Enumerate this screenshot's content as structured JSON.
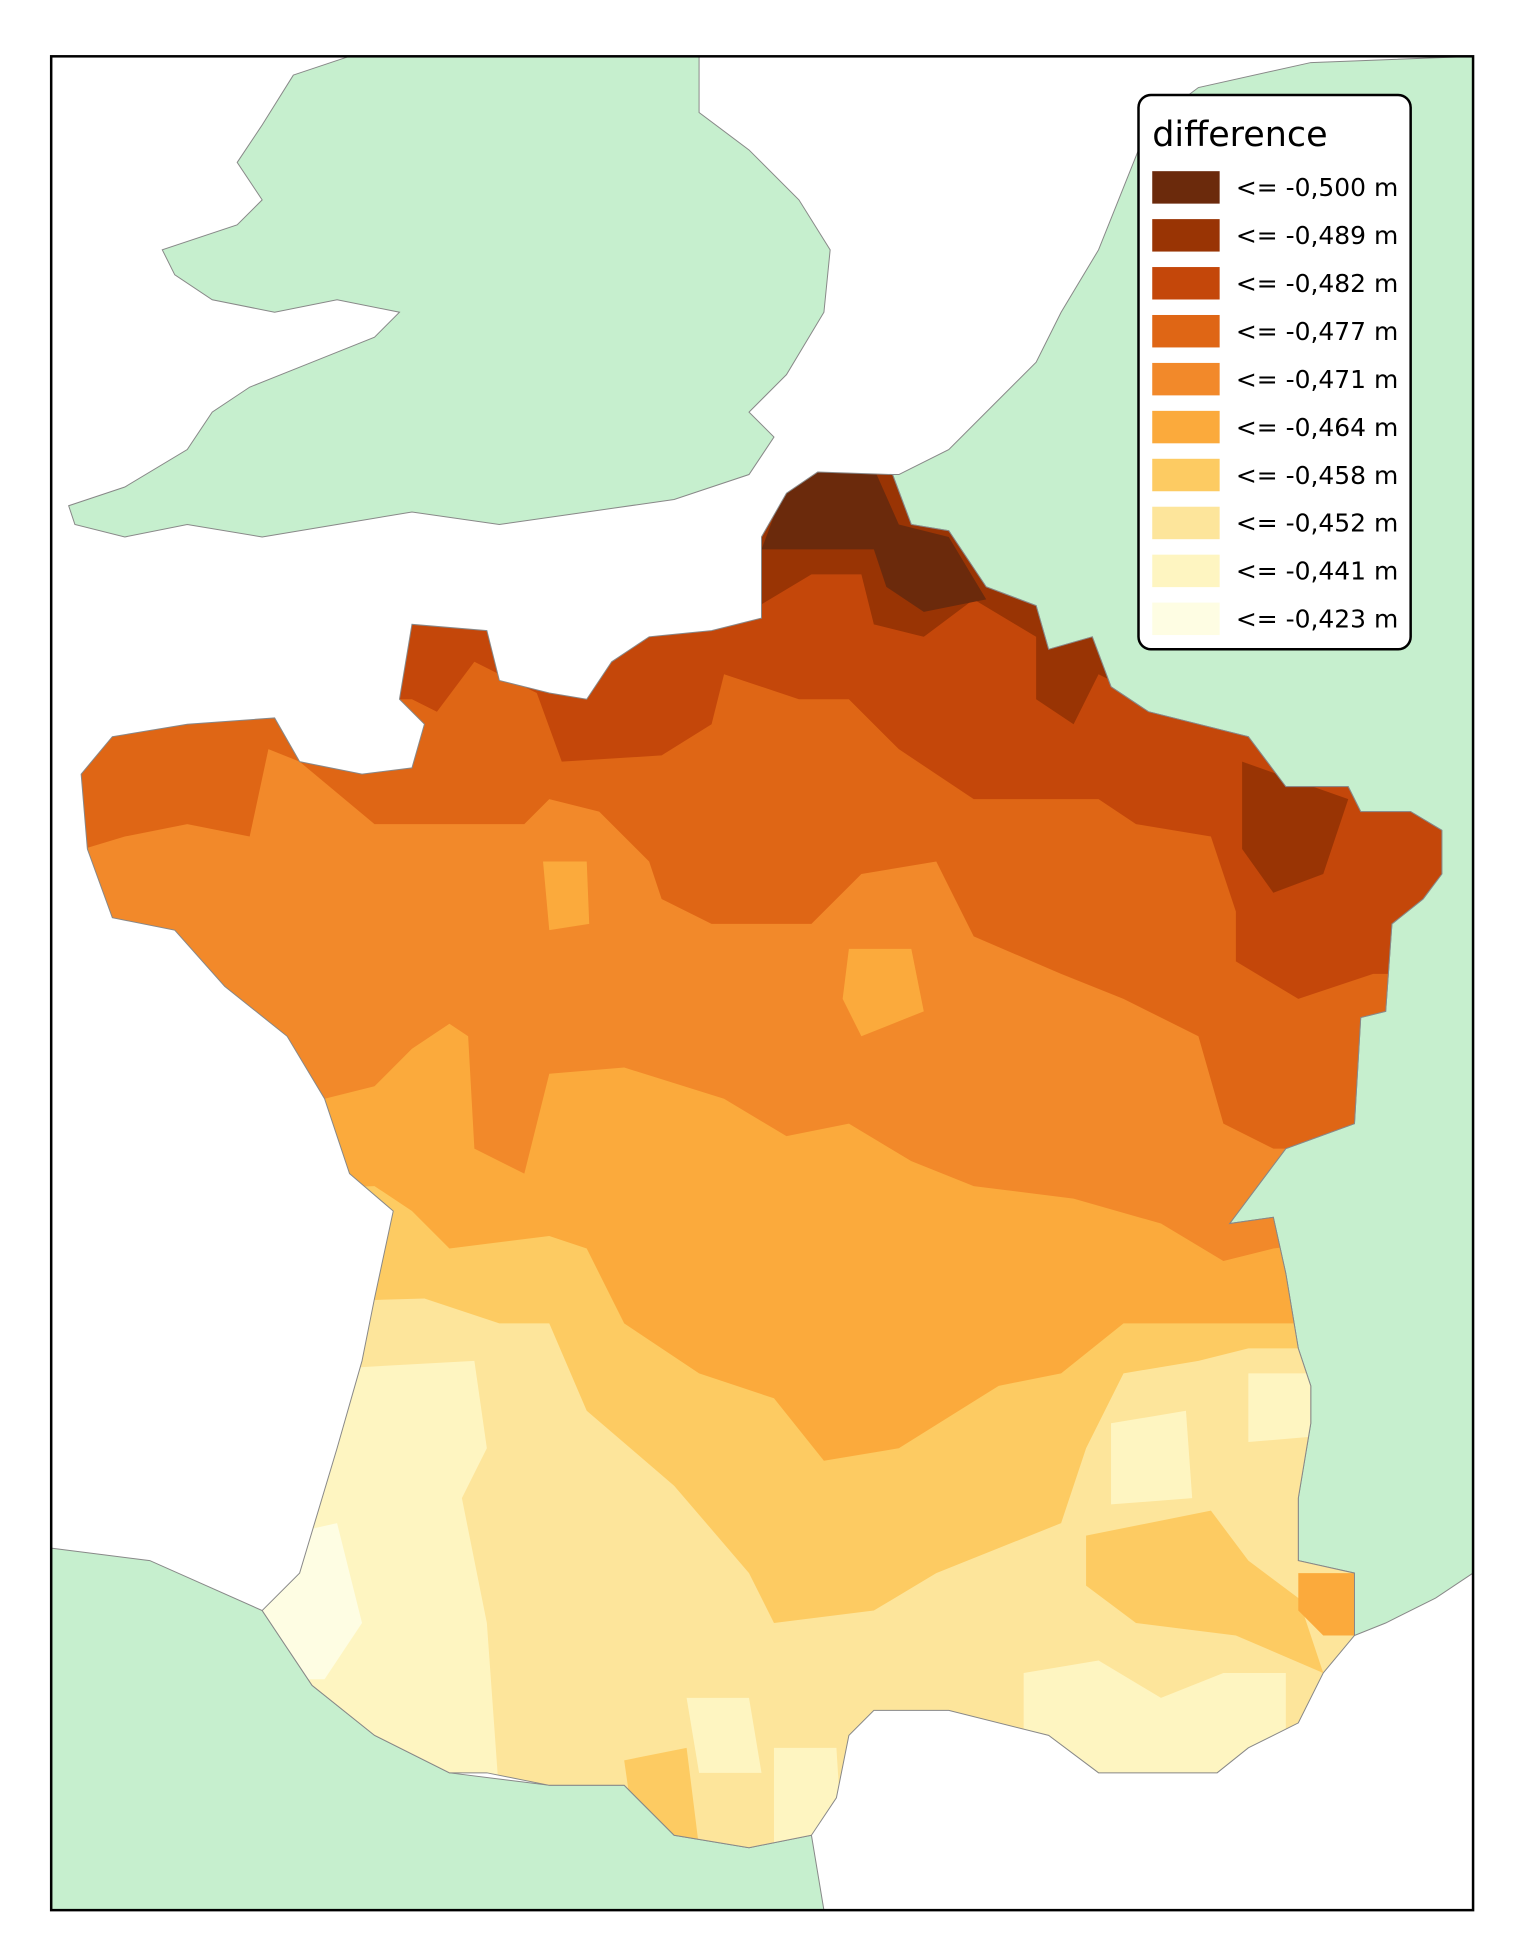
{
  "legend": {
    "title": "difference",
    "items": [
      {
        "label": "<= -0,500 m",
        "color": "#6b2a0c"
      },
      {
        "label": "<= -0,489 m",
        "color": "#993404"
      },
      {
        "label": "<= -0,482 m",
        "color": "#c4470a"
      },
      {
        "label": "<= -0,477 m",
        "color": "#df6615"
      },
      {
        "label": "<= -0,471 m",
        "color": "#f2892a"
      },
      {
        "label": "<= -0,464 m",
        "color": "#fbaa3c"
      },
      {
        "label": "<= -0,458 m",
        "color": "#fdcb62"
      },
      {
        "label": "<= -0,452 m",
        "color": "#fde59b"
      },
      {
        "label": "<= -0,441 m",
        "color": "#fef5c1"
      },
      {
        "label": "<= -0,423 m",
        "color": "#fefde3"
      }
    ]
  }
}
